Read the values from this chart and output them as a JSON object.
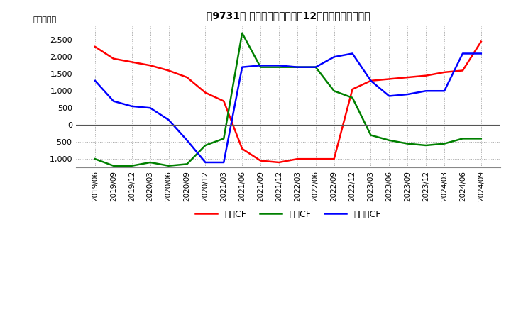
{
  "title_text": "【9731】 キャッシュフローの12か月移動合計の推移",
  "ylabel": "（百万円）",
  "ylim": [
    -1250,
    2900
  ],
  "yticks": [
    -1000,
    -500,
    0,
    500,
    1000,
    1500,
    2000,
    2500
  ],
  "x_labels": [
    "2019/06",
    "2019/09",
    "2019/12",
    "2020/03",
    "2020/06",
    "2020/09",
    "2020/12",
    "2021/03",
    "2021/06",
    "2021/09",
    "2021/12",
    "2022/03",
    "2022/06",
    "2022/09",
    "2022/12",
    "2023/03",
    "2023/06",
    "2023/09",
    "2023/12",
    "2024/03",
    "2024/06",
    "2024/09"
  ],
  "operating_cf": [
    2300,
    1950,
    1850,
    1750,
    1600,
    1400,
    950,
    700,
    -700,
    -1050,
    -1100,
    -1000,
    -1000,
    -1000,
    1050,
    1300,
    1350,
    1400,
    1450,
    1550,
    1600,
    2450
  ],
  "investing_cf": [
    -1000,
    -1200,
    -1200,
    -1100,
    -1200,
    -1150,
    -600,
    -400,
    2700,
    1700,
    1700,
    1700,
    1700,
    1000,
    800,
    -300,
    -450,
    -550,
    -600,
    -550,
    -400,
    -400
  ],
  "free_cf": [
    1300,
    700,
    550,
    500,
    150,
    -450,
    -1100,
    -1100,
    1700,
    1750,
    1750,
    1700,
    1700,
    2000,
    2100,
    1300,
    850,
    900,
    1000,
    1000,
    2100,
    2100
  ],
  "operating_color": "#ff0000",
  "investing_color": "#008000",
  "free_color": "#0000ff",
  "legend_labels": [
    "営業CF",
    "投資CF",
    "フリーCF"
  ],
  "background_color": "#ffffff"
}
